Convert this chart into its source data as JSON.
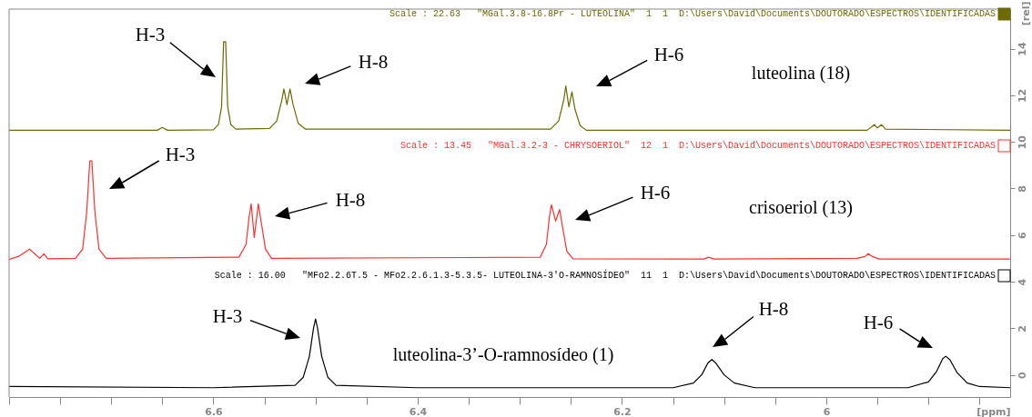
{
  "chart_data": {
    "type": "line",
    "xlabel": "[ppm]",
    "ylabel": "[rel]",
    "xlim": [
      6.8,
      5.82
    ],
    "ylim": [
      -0.95,
      15.7
    ],
    "xticks": [
      {
        "value": 6.8,
        "label": null
      },
      {
        "value": 6.75,
        "label": null
      },
      {
        "value": 6.7,
        "label": null
      },
      {
        "value": 6.65,
        "label": null
      },
      6.6,
      {
        "value": 6.55,
        "label": null
      },
      {
        "value": 6.5,
        "label": null
      },
      {
        "value": 6.45,
        "label": null
      },
      6.4,
      {
        "value": 6.35,
        "label": null
      },
      {
        "value": 6.3,
        "label": null
      },
      {
        "value": 6.25,
        "label": null
      },
      6.2,
      {
        "value": 6.15,
        "label": null
      },
      {
        "value": 6.1,
        "label": null
      },
      {
        "value": 6.05,
        "label": null
      },
      6.0,
      {
        "value": 5.95,
        "label": null
      },
      {
        "value": 5.9,
        "label": null
      },
      {
        "value": 5.85,
        "label": null
      }
    ],
    "yticks": [
      0,
      2,
      4,
      6,
      8,
      10,
      12,
      14
    ],
    "grid": false,
    "legend": false,
    "marker": "none",
    "line_style": "solid",
    "series": [
      {
        "name": "luteolina (18)",
        "color": "#6b6b00",
        "x": [
          6.8,
          6.655,
          6.65,
          6.645,
          6.6,
          6.595,
          6.592,
          6.59,
          6.588,
          6.586,
          6.583,
          6.578,
          6.545,
          6.538,
          6.533,
          6.531,
          6.528,
          6.525,
          6.522,
          6.517,
          6.51,
          6.27,
          6.262,
          6.257,
          6.255,
          6.252,
          6.249,
          6.246,
          6.241,
          6.235,
          5.96,
          5.953,
          5.95,
          5.946,
          5.942,
          5.82
        ],
        "values": [
          10.5,
          10.5,
          10.62,
          10.5,
          10.52,
          10.75,
          11.5,
          14.3,
          14.3,
          11.5,
          10.75,
          10.55,
          10.58,
          10.9,
          11.8,
          12.27,
          11.6,
          12.27,
          11.6,
          10.8,
          10.55,
          10.55,
          10.9,
          11.8,
          12.4,
          11.5,
          12.15,
          11.4,
          10.7,
          10.5,
          10.5,
          10.74,
          10.6,
          10.74,
          10.55,
          10.5
        ]
      },
      {
        "name": "crisoeriol (13)",
        "color": "#ff3030",
        "x": [
          6.8,
          6.79,
          6.78,
          6.775,
          6.77,
          6.766,
          6.762,
          6.735,
          6.728,
          6.724,
          6.721,
          6.719,
          6.716,
          6.712,
          6.705,
          6.575,
          6.568,
          6.565,
          6.563,
          6.56,
          6.556,
          6.553,
          6.549,
          6.543,
          6.28,
          6.274,
          6.271,
          6.269,
          6.265,
          6.261,
          6.258,
          6.254,
          6.248,
          6.12,
          6.115,
          6.11,
          5.97,
          5.962,
          5.959,
          5.955,
          5.948,
          5.82
        ],
        "values": [
          4.95,
          5.1,
          5.4,
          5.2,
          5.0,
          5.2,
          4.98,
          5.0,
          5.4,
          7.0,
          9.18,
          9.18,
          7.0,
          5.4,
          5.0,
          5.05,
          5.6,
          6.8,
          7.34,
          5.9,
          7.34,
          6.5,
          5.4,
          5.0,
          5.05,
          5.6,
          6.8,
          7.3,
          6.6,
          7.1,
          6.3,
          5.3,
          4.98,
          4.97,
          5.05,
          4.97,
          5.0,
          5.08,
          5.2,
          5.08,
          4.97,
          4.97
        ]
      },
      {
        "name": "luteolina-3’-O-ramnosídeo (1)",
        "color": "#000000",
        "x": [
          6.8,
          6.6,
          6.52,
          6.512,
          6.506,
          6.502,
          6.5,
          6.498,
          6.494,
          6.488,
          6.48,
          6.4,
          6.15,
          6.13,
          6.122,
          6.116,
          6.112,
          6.108,
          6.1,
          6.09,
          6.07,
          5.92,
          5.9,
          5.892,
          5.886,
          5.883,
          5.879,
          5.872,
          5.862,
          5.85,
          5.82
        ],
        "values": [
          -0.5,
          -0.55,
          -0.45,
          -0.1,
          0.8,
          2.0,
          2.4,
          2.0,
          0.8,
          -0.1,
          -0.45,
          -0.55,
          -0.55,
          -0.35,
          0.0,
          0.5,
          0.66,
          0.5,
          0.0,
          -0.35,
          -0.55,
          -0.55,
          -0.3,
          0.15,
          0.7,
          0.8,
          0.65,
          0.1,
          -0.35,
          -0.5,
          -0.55
        ]
      }
    ],
    "annotations": [
      "Scale : 22.63   \"MGal.3.8-16.8Pr - LUTEOLINA\"  1  1  D:\\Users\\David\\Documents\\DOUTORADO\\ESPECTROS\\IDENTIFICADAS",
      "Scale : 13.45   \"MGal.3.2-3 - CHRYSOERIOL\"  12  1  D:\\Users\\David\\Documents\\DOUTORADO\\ESPECTROS\\IDENTIFICADAS",
      "Scale : 16.00   \"MFo2.2.6T.5 - MFo2.2.6.1.3-5.3.5- LUTEOLINA-3'O-RAMNOSÍDEO\"  11  1  D:\\Users\\David\\Documents\\DOUTORADO\\ESPECTROS\\IDENTIFICADAS",
      "H-3",
      "H-8",
      "H-6",
      "H-3",
      "H-8",
      "H-6",
      "H-3",
      "H-8",
      "H-6"
    ]
  }
}
